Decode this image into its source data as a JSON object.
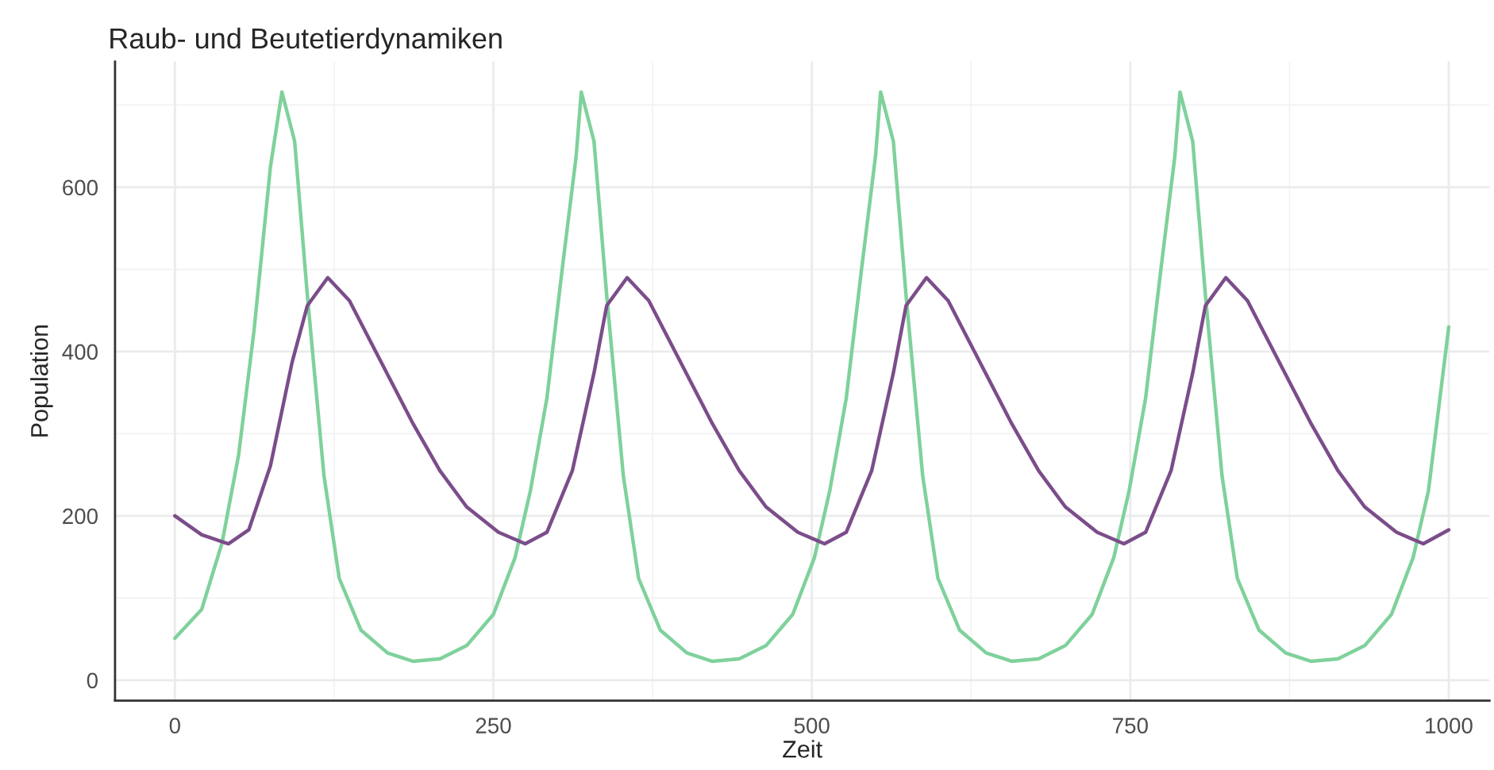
{
  "chart_data": {
    "type": "line",
    "title": "Raub- und Beutetierdynamiken",
    "xlabel": "Zeit",
    "ylabel": "Population",
    "xlim": [
      -47,
      1032
    ],
    "ylim": [
      -25,
      753
    ],
    "xticks": [
      0,
      250,
      500,
      750,
      1000
    ],
    "yticks": [
      0,
      200,
      400,
      600
    ],
    "grid": true,
    "legend": false,
    "marker": "none",
    "line_style": "solid",
    "series": [
      {
        "color": "#7fd19b",
        "x": [
          0,
          21,
          37,
          50,
          62,
          75,
          84,
          94,
          104,
          117,
          129,
          146,
          167,
          187,
          208,
          229,
          250,
          267,
          279,
          292,
          304,
          315,
          319,
          329,
          339,
          352,
          364,
          381,
          402,
          422,
          443,
          464,
          485,
          502,
          514,
          527,
          539,
          550,
          554,
          564,
          574,
          587,
          599,
          616,
          637,
          657,
          678,
          699,
          720,
          737,
          749,
          762,
          774,
          785,
          789,
          799,
          809,
          822,
          834,
          851,
          872,
          892,
          913,
          934,
          955,
          972,
          984,
          1000
        ],
        "values": [
          51,
          86,
          167,
          274,
          424,
          625,
          716,
          656,
          468,
          249,
          124,
          61,
          33,
          23,
          26,
          42,
          80,
          149,
          230,
          343,
          500,
          638,
          716,
          656,
          468,
          249,
          124,
          61,
          33,
          23,
          26,
          42,
          80,
          149,
          230,
          343,
          500,
          638,
          716,
          656,
          468,
          249,
          124,
          61,
          33,
          23,
          26,
          42,
          80,
          149,
          230,
          343,
          500,
          638,
          716,
          656,
          468,
          249,
          124,
          61,
          33,
          23,
          26,
          42,
          80,
          149,
          230,
          430
        ]
      },
      {
        "color": "#7b4d8a",
        "x": [
          0,
          21,
          42,
          58,
          75,
          92,
          104,
          120,
          137,
          158,
          187,
          208,
          229,
          254,
          275,
          292,
          312,
          329,
          339,
          355,
          372,
          393,
          422,
          443,
          464,
          489,
          510,
          527,
          547,
          564,
          574,
          590,
          607,
          628,
          657,
          678,
          699,
          724,
          745,
          762,
          782,
          799,
          809,
          825,
          842,
          863,
          892,
          913,
          934,
          959,
          980,
          1000
        ],
        "values": [
          200,
          177,
          166,
          183,
          261,
          387,
          456,
          490,
          462,
          399,
          312,
          255,
          211,
          180,
          166,
          180,
          255,
          374,
          456,
          490,
          462,
          399,
          312,
          255,
          211,
          180,
          166,
          180,
          255,
          374,
          456,
          490,
          462,
          399,
          312,
          255,
          211,
          180,
          166,
          180,
          255,
          374,
          456,
          490,
          462,
          399,
          312,
          255,
          211,
          180,
          166,
          183
        ]
      }
    ]
  }
}
